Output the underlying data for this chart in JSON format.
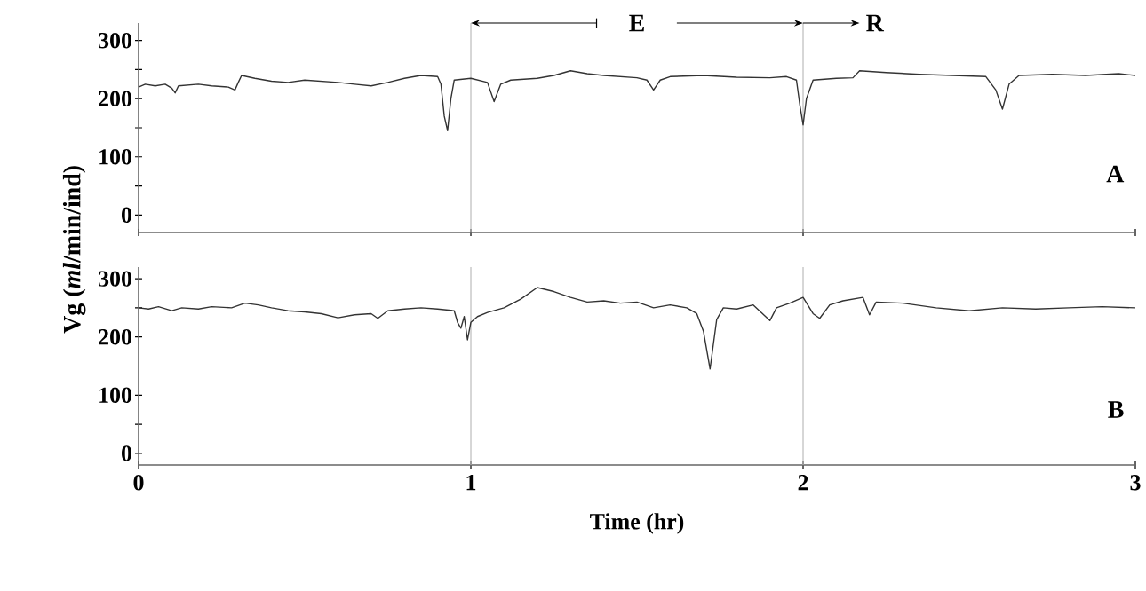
{
  "chart_data": [
    {
      "type": "line",
      "ylabel": "Vg (*ml*/min/ind)",
      "annotations": [
        "E",
        {
          "text": "R",
          "x": 2
        },
        "A"
      ],
      "xlim": [
        0,
        3
      ],
      "xticks": [
        0,
        1,
        2,
        3
      ],
      "ylim": [
        -30,
        330
      ],
      "yticks": [
        0,
        {
          "value": 50,
          "label": null
        },
        100,
        {
          "value": 150,
          "label": null
        },
        200,
        {
          "value": 250,
          "label": null
        },
        300
      ],
      "tick_labels": "y",
      "ref_lines": [
        {
          "axis": "x",
          "value": 1,
          "color": "#bbbbbb"
        },
        {
          "axis": "x",
          "value": 2,
          "color": "#bbbbbb"
        }
      ],
      "series": [
        {
          "color": "#333333",
          "x": [
            0,
            0.02,
            0.05,
            0.08,
            0.1,
            0.11,
            0.12,
            0.18,
            0.22,
            0.27,
            0.29,
            0.3,
            0.31,
            0.35,
            0.4,
            0.45,
            0.5,
            0.55,
            0.6,
            0.65,
            0.7,
            0.75,
            0.8,
            0.85,
            0.9,
            0.91,
            0.92,
            0.93,
            0.94,
            0.95,
            1.0,
            1.05,
            1.07,
            1.09,
            1.12,
            1.2,
            1.25,
            1.3,
            1.35,
            1.4,
            1.45,
            1.5,
            1.53,
            1.55,
            1.57,
            1.6,
            1.7,
            1.8,
            1.9,
            1.95,
            1.98,
            1.99,
            2.0,
            2.01,
            2.03,
            2.1,
            2.15,
            2.17,
            2.25,
            2.35,
            2.45,
            2.55,
            2.58,
            2.6,
            2.62,
            2.65,
            2.75,
            2.85,
            2.95,
            3.0
          ],
          "values": [
            220,
            225,
            222,
            225,
            218,
            210,
            222,
            225,
            222,
            220,
            215,
            228,
            240,
            235,
            230,
            228,
            232,
            230,
            228,
            225,
            222,
            228,
            235,
            240,
            238,
            225,
            170,
            145,
            200,
            232,
            235,
            228,
            195,
            225,
            232,
            235,
            240,
            248,
            243,
            240,
            238,
            236,
            232,
            215,
            232,
            238,
            240,
            237,
            236,
            238,
            232,
            190,
            155,
            200,
            232,
            235,
            236,
            248,
            245,
            242,
            240,
            238,
            215,
            182,
            225,
            240,
            242,
            240,
            243,
            240
          ]
        }
      ]
    },
    {
      "type": "line",
      "xlabel": "Time (hr)",
      "annotations": [
        "B"
      ],
      "xlim": [
        0,
        3
      ],
      "xticks": [
        0,
        1,
        2,
        3
      ],
      "ylim": [
        -20,
        320
      ],
      "yticks": [
        0,
        {
          "value": 50,
          "label": null
        },
        100,
        {
          "value": 150,
          "label": null
        },
        200,
        {
          "value": 250,
          "label": null
        },
        300
      ],
      "ref_lines": [
        {
          "axis": "x",
          "value": 1,
          "color": "#bbbbbb"
        },
        {
          "axis": "x",
          "value": 2,
          "color": "#bbbbbb"
        }
      ],
      "series": [
        {
          "color": "#333333",
          "x": [
            0,
            0.03,
            0.06,
            0.1,
            0.13,
            0.18,
            0.22,
            0.28,
            0.32,
            0.36,
            0.4,
            0.45,
            0.5,
            0.55,
            0.6,
            0.65,
            0.7,
            0.72,
            0.75,
            0.8,
            0.85,
            0.9,
            0.95,
            0.96,
            0.97,
            0.98,
            0.99,
            1.0,
            1.02,
            1.05,
            1.1,
            1.15,
            1.2,
            1.25,
            1.3,
            1.35,
            1.4,
            1.45,
            1.5,
            1.55,
            1.6,
            1.65,
            1.68,
            1.7,
            1.72,
            1.74,
            1.76,
            1.8,
            1.85,
            1.9,
            1.92,
            1.96,
            2.0,
            2.03,
            2.05,
            2.08,
            2.12,
            2.18,
            2.2,
            2.22,
            2.3,
            2.4,
            2.5,
            2.6,
            2.7,
            2.8,
            2.9,
            3.0
          ],
          "values": [
            250,
            248,
            252,
            245,
            250,
            248,
            252,
            250,
            258,
            255,
            250,
            245,
            243,
            240,
            233,
            238,
            240,
            232,
            245,
            248,
            250,
            248,
            245,
            225,
            215,
            235,
            195,
            225,
            235,
            242,
            250,
            265,
            285,
            278,
            268,
            260,
            262,
            258,
            260,
            250,
            255,
            250,
            240,
            210,
            145,
            230,
            250,
            248,
            255,
            228,
            250,
            258,
            268,
            240,
            232,
            255,
            262,
            268,
            238,
            260,
            258,
            250,
            245,
            250,
            248,
            250,
            252,
            250
          ]
        }
      ]
    }
  ]
}
